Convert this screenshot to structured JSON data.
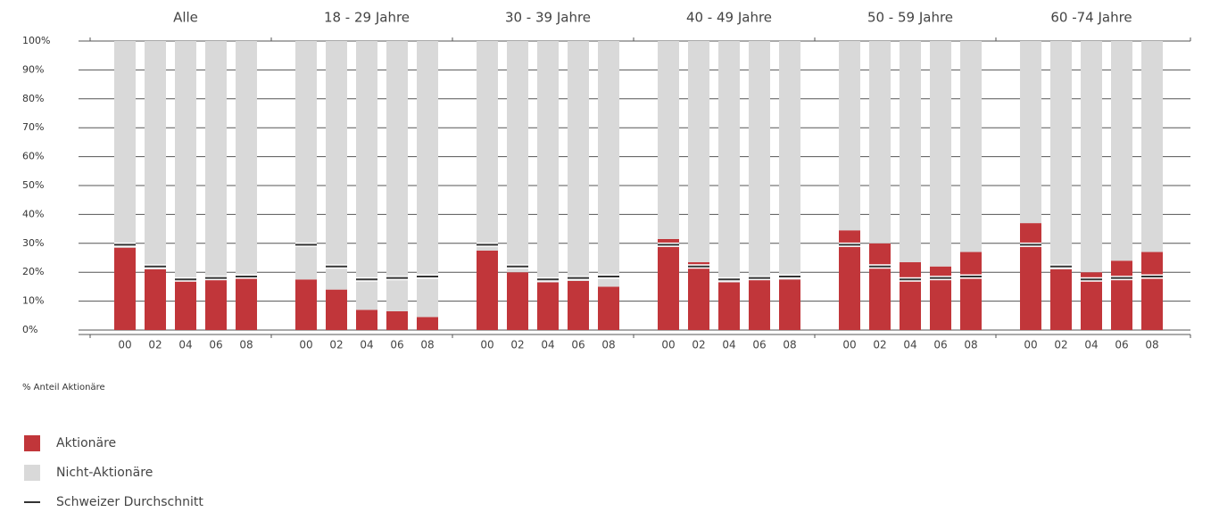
{
  "chart_data": {
    "type": "grouped_stacked_bar",
    "groups": [
      "Alle",
      "18 - 29 Jahre",
      "30 - 39 Jahre",
      "40 - 49 Jahre",
      "50 - 59 Jahre",
      "60 -74 Jahre"
    ],
    "categories": [
      "00",
      "02",
      "04",
      "06",
      "08"
    ],
    "y_label": "% Anteil Aktionäre",
    "ylim": [
      0,
      100
    ],
    "yticks": [
      {
        "value": 0,
        "label": "0%"
      },
      {
        "value": 10,
        "label": "10%"
      },
      {
        "value": 20,
        "label": "20%"
      },
      {
        "value": 30,
        "label": "30%"
      },
      {
        "value": 40,
        "label": "40%"
      },
      {
        "value": 50,
        "label": "50%"
      },
      {
        "value": 60,
        "label": "60%"
      },
      {
        "value": 70,
        "label": "70%"
      },
      {
        "value": 80,
        "label": "80%"
      },
      {
        "value": 90,
        "label": "90%"
      },
      {
        "value": 100,
        "label": "100%"
      }
    ],
    "grid": true,
    "series": [
      {
        "name": "Aktionäre",
        "color": "#c1363a",
        "values": [
          [
            28.5,
            21,
            17,
            17.5,
            18
          ],
          [
            17.5,
            14,
            7,
            6.5,
            4.5
          ],
          [
            27.5,
            20,
            16.5,
            17,
            15
          ],
          [
            31.5,
            23.5,
            16.5,
            18,
            17.5
          ],
          [
            34.5,
            30,
            23.5,
            22,
            27
          ],
          [
            37,
            21,
            20,
            24,
            27
          ]
        ]
      },
      {
        "name": "Nicht-Aktionäre",
        "color": "#d9d9d9",
        "values": [
          [
            71.5,
            79,
            83,
            82.5,
            82
          ],
          [
            82.5,
            86,
            93,
            93.5,
            95.5
          ],
          [
            72.5,
            80,
            83.5,
            83,
            85
          ],
          [
            68.5,
            76.5,
            83.5,
            82,
            82.5
          ],
          [
            65.5,
            70,
            76.5,
            78,
            73
          ],
          [
            63,
            79,
            80,
            76,
            73
          ]
        ]
      }
    ],
    "average": {
      "name": "Schweizer Durchschnitt",
      "color": "#333333",
      "values": [
        29.5,
        22,
        17.5,
        18,
        18.5
      ]
    }
  }
}
